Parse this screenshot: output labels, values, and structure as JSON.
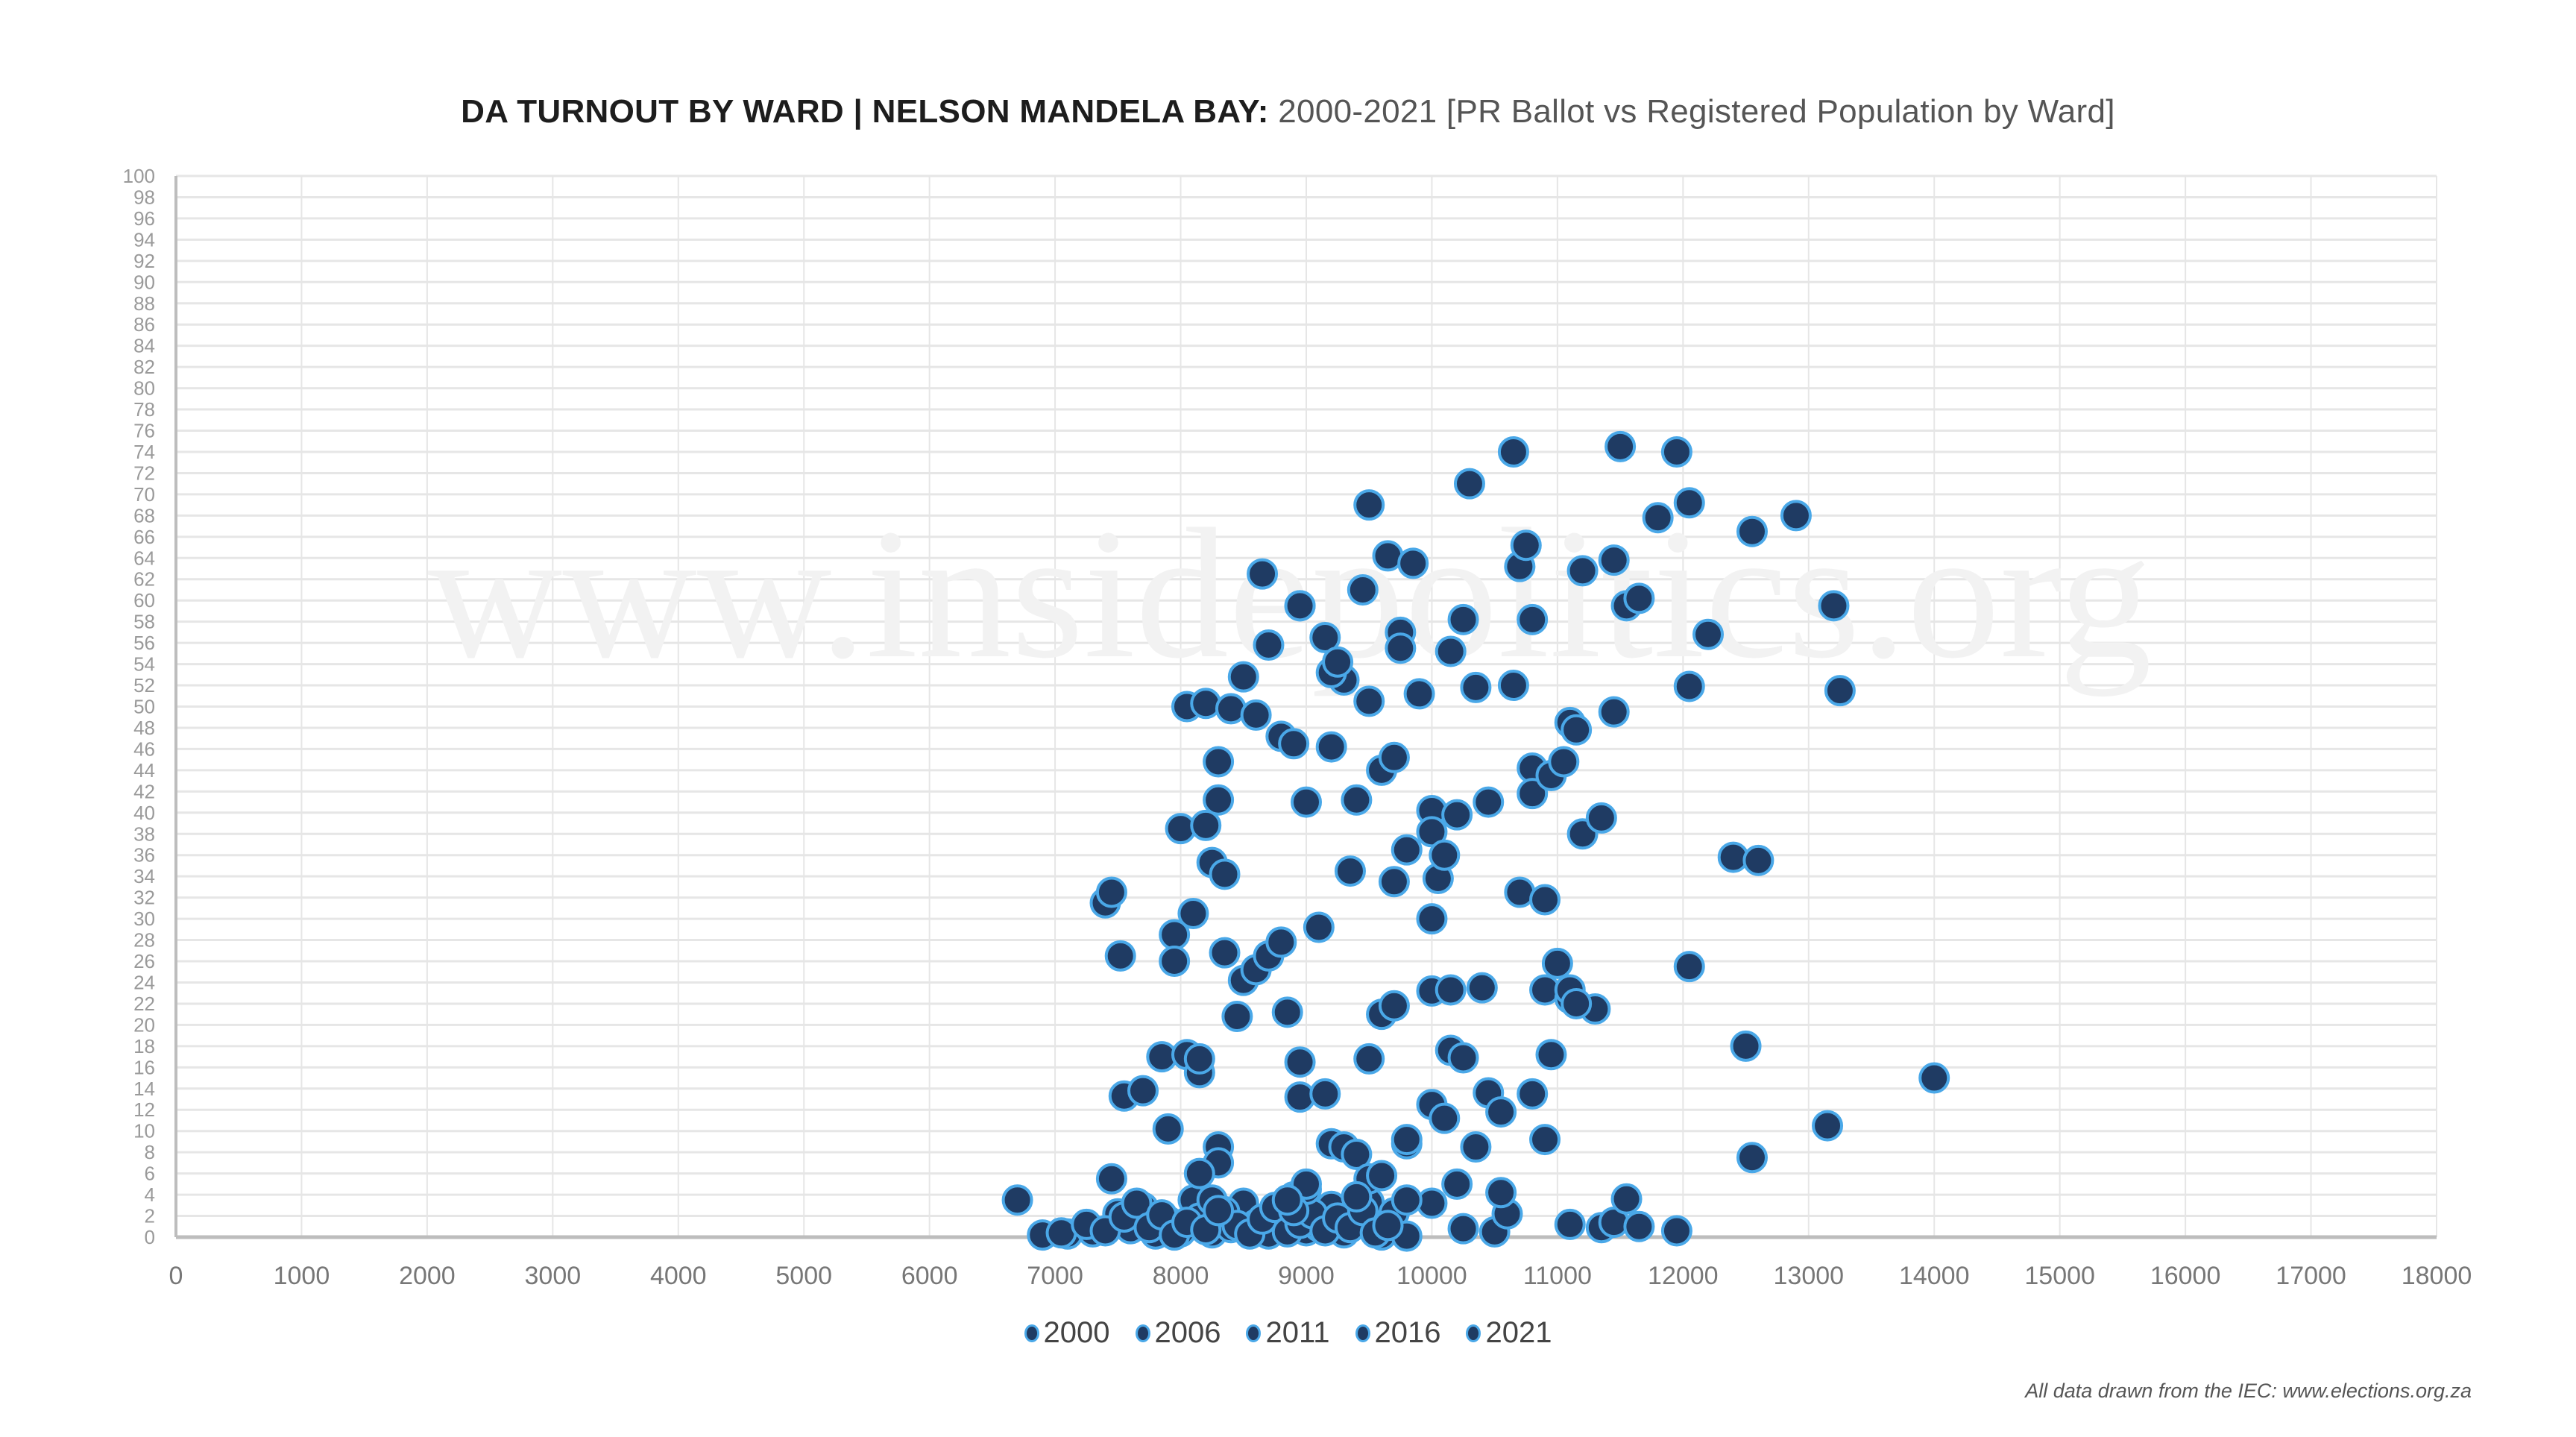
{
  "title": {
    "bold": "DA TURNOUT BY WARD | NELSON MANDELA BAY:",
    "light": "2000-2021 [PR Ballot vs Registered Population by Ward]"
  },
  "watermark": "www.insidepolitics.org",
  "footer": "All data drawn from the IEC: www.elections.org.za",
  "colors": {
    "marker_fill": "#1f3b63",
    "marker_stroke": "#4aa8e8",
    "grid": "#e6e6e6",
    "axis": "#bdbdbd",
    "tick_text": "#9a9a9a",
    "xtick_text": "#777777"
  },
  "chart_data": {
    "type": "scatter",
    "title": "DA TURNOUT BY WARD | NELSON MANDELA BAY: 2000-2021 [PR Ballot vs Registered Population by Ward]",
    "xlabel": "",
    "ylabel": "",
    "xlim": [
      0,
      18000
    ],
    "ylim": [
      0,
      100
    ],
    "xticks": [
      0,
      1000,
      2000,
      3000,
      4000,
      5000,
      6000,
      7000,
      8000,
      9000,
      10000,
      11000,
      12000,
      13000,
      14000,
      15000,
      16000,
      17000,
      18000
    ],
    "yticks": [
      0,
      2,
      4,
      6,
      8,
      10,
      12,
      14,
      16,
      18,
      20,
      22,
      24,
      26,
      28,
      30,
      32,
      34,
      36,
      38,
      40,
      42,
      44,
      46,
      48,
      50,
      52,
      54,
      56,
      58,
      60,
      62,
      64,
      66,
      68,
      70,
      72,
      74,
      76,
      78,
      80,
      82,
      84,
      86,
      88,
      90,
      92,
      94,
      96,
      98,
      100
    ],
    "grid": true,
    "legend_position": "bottom",
    "series": [
      {
        "name": "2000",
        "points": [
          [
            6700,
            3.5
          ],
          [
            6900,
            0.2
          ],
          [
            7100,
            0.3
          ],
          [
            7300,
            0.5
          ],
          [
            7450,
            5.5
          ],
          [
            7500,
            2.2
          ],
          [
            7600,
            0.8
          ],
          [
            7700,
            2.8
          ],
          [
            7800,
            0.3
          ],
          [
            7900,
            1.5
          ],
          [
            8000,
            0.5
          ],
          [
            8100,
            3.5
          ],
          [
            8150,
            1.8
          ],
          [
            8250,
            0.4
          ],
          [
            8300,
            2.6
          ],
          [
            8400,
            0.9
          ],
          [
            8500,
            3.2
          ],
          [
            8600,
            1.2
          ],
          [
            8700,
            0.3
          ],
          [
            8800,
            2.0
          ],
          [
            8900,
            3.8
          ],
          [
            9000,
            0.6
          ],
          [
            9100,
            1.0
          ],
          [
            9200,
            2.9
          ],
          [
            9300,
            0.4
          ],
          [
            9400,
            1.6
          ],
          [
            9500,
            3.3
          ],
          [
            9600,
            0.2
          ],
          [
            9700,
            2.3
          ],
          [
            9800,
            0.1
          ],
          [
            10000,
            3.2
          ],
          [
            10250,
            0.8
          ],
          [
            10500,
            0.5
          ],
          [
            10600,
            2.2
          ]
        ]
      },
      {
        "name": "2006",
        "points": [
          [
            7050,
            0.4
          ],
          [
            7250,
            1.2
          ],
          [
            7400,
            0.6
          ],
          [
            7550,
            1.9
          ],
          [
            7650,
            3.2
          ],
          [
            7750,
            0.9
          ],
          [
            7850,
            2.1
          ],
          [
            7950,
            0.2
          ],
          [
            8050,
            1.4
          ],
          [
            8200,
            0.7
          ],
          [
            8350,
            2.4
          ],
          [
            8450,
            1.1
          ],
          [
            8550,
            0.3
          ],
          [
            8650,
            1.7
          ],
          [
            8750,
            2.8
          ],
          [
            8850,
            0.5
          ],
          [
            8950,
            1.3
          ],
          [
            9050,
            2.2
          ],
          [
            9150,
            0.6
          ],
          [
            9250,
            1.8
          ],
          [
            9350,
            0.9
          ],
          [
            9450,
            2.5
          ],
          [
            9550,
            0.4
          ],
          [
            9650,
            1.1
          ],
          [
            10550,
            4.2
          ],
          [
            11100,
            1.2
          ],
          [
            11350,
            0.9
          ],
          [
            11450,
            1.4
          ],
          [
            11550,
            3.6
          ],
          [
            11650,
            1.0
          ],
          [
            11950,
            0.6
          ]
        ]
      },
      {
        "name": "2011",
        "points": [
          [
            7400,
            31.5
          ],
          [
            7450,
            32.5
          ],
          [
            7520,
            26.5
          ],
          [
            7550,
            13.3
          ],
          [
            7700,
            13.8
          ],
          [
            7850,
            17.0
          ],
          [
            7900,
            10.2
          ],
          [
            7950,
            28.5
          ],
          [
            7950,
            26.0
          ],
          [
            8000,
            38.5
          ],
          [
            8050,
            17.2
          ],
          [
            8100,
            30.5
          ],
          [
            8150,
            15.5
          ],
          [
            8150,
            16.8
          ],
          [
            8200,
            38.8
          ],
          [
            8250,
            35.3
          ],
          [
            8300,
            8.5
          ],
          [
            8300,
            7.0
          ],
          [
            8350,
            26.8
          ],
          [
            8450,
            20.8
          ],
          [
            8500,
            24.2
          ],
          [
            8600,
            25.2
          ],
          [
            8700,
            26.5
          ],
          [
            8800,
            27.8
          ],
          [
            8850,
            21.2
          ],
          [
            8950,
            16.5
          ],
          [
            8950,
            13.2
          ],
          [
            9100,
            29.2
          ],
          [
            9150,
            13.5
          ],
          [
            9200,
            8.8
          ],
          [
            9300,
            8.5
          ],
          [
            9400,
            7.8
          ],
          [
            9500,
            16.8
          ],
          [
            9600,
            21.0
          ],
          [
            9700,
            21.8
          ],
          [
            9800,
            8.8
          ],
          [
            9800,
            9.2
          ],
          [
            10000,
            12.5
          ],
          [
            10100,
            11.2
          ],
          [
            10150,
            17.6
          ],
          [
            10250,
            16.9
          ],
          [
            10350,
            8.5
          ],
          [
            10450,
            13.6
          ],
          [
            10550,
            11.8
          ],
          [
            10800,
            13.5
          ],
          [
            10900,
            9.2
          ],
          [
            10950,
            17.2
          ],
          [
            12500,
            18.0
          ],
          [
            12550,
            7.5
          ],
          [
            13150,
            10.5
          ],
          [
            14000,
            15.0
          ]
        ]
      },
      {
        "name": "2016",
        "points": [
          [
            8050,
            50.0
          ],
          [
            8200,
            50.3
          ],
          [
            8300,
            44.8
          ],
          [
            8300,
            41.2
          ],
          [
            8350,
            34.2
          ],
          [
            8400,
            49.8
          ],
          [
            8500,
            52.8
          ],
          [
            8600,
            49.2
          ],
          [
            8700,
            55.8
          ],
          [
            8800,
            47.2
          ],
          [
            8900,
            46.5
          ],
          [
            8950,
            59.5
          ],
          [
            9000,
            41.0
          ],
          [
            9150,
            56.5
          ],
          [
            9200,
            46.2
          ],
          [
            9300,
            52.5
          ],
          [
            9350,
            34.5
          ],
          [
            9400,
            41.2
          ],
          [
            9500,
            50.5
          ],
          [
            9600,
            44.0
          ],
          [
            9700,
            45.2
          ],
          [
            9700,
            33.5
          ],
          [
            9800,
            36.5
          ],
          [
            9900,
            51.2
          ],
          [
            10000,
            40.2
          ],
          [
            10000,
            38.2
          ],
          [
            10050,
            33.8
          ],
          [
            10100,
            36.0
          ],
          [
            10200,
            39.8
          ],
          [
            10350,
            51.8
          ],
          [
            10450,
            41.0
          ],
          [
            10650,
            52.0
          ],
          [
            10700,
            32.5
          ],
          [
            10800,
            44.2
          ],
          [
            10800,
            41.8
          ],
          [
            10900,
            31.8
          ],
          [
            10950,
            43.5
          ],
          [
            11000,
            25.8
          ],
          [
            11050,
            44.8
          ],
          [
            11100,
            48.5
          ],
          [
            11150,
            47.8
          ],
          [
            11200,
            38.0
          ],
          [
            11300,
            21.5
          ],
          [
            11350,
            39.5
          ],
          [
            11450,
            49.5
          ],
          [
            12050,
            51.9
          ],
          [
            12400,
            35.8
          ],
          [
            12600,
            35.5
          ],
          [
            12050,
            25.5
          ],
          [
            13250,
            51.5
          ]
        ]
      },
      {
        "name": "2021",
        "points": [
          [
            8650,
            62.5
          ],
          [
            8950,
            59.5
          ],
          [
            9200,
            53.2
          ],
          [
            9250,
            54.2
          ],
          [
            9450,
            61.0
          ],
          [
            9500,
            69.0
          ],
          [
            9650,
            64.2
          ],
          [
            9750,
            57.0
          ],
          [
            9750,
            55.5
          ],
          [
            9850,
            63.5
          ],
          [
            10150,
            55.2
          ],
          [
            10250,
            58.2
          ],
          [
            10300,
            71.0
          ],
          [
            10650,
            74.0
          ],
          [
            10700,
            63.2
          ],
          [
            10750,
            65.2
          ],
          [
            10800,
            58.2
          ],
          [
            11200,
            62.8
          ],
          [
            11450,
            63.8
          ],
          [
            11500,
            74.5
          ],
          [
            11550,
            59.5
          ],
          [
            11650,
            60.2
          ],
          [
            11800,
            67.8
          ],
          [
            11950,
            74.0
          ],
          [
            12050,
            69.2
          ],
          [
            12200,
            56.8
          ],
          [
            12550,
            66.5
          ],
          [
            12900,
            68.0
          ],
          [
            13200,
            59.5
          ],
          [
            10000,
            30.0
          ],
          [
            10000,
            23.2
          ],
          [
            10150,
            23.3
          ],
          [
            10400,
            23.5
          ],
          [
            10900,
            23.3
          ],
          [
            11100,
            22.5
          ],
          [
            11100,
            23.3
          ],
          [
            11150,
            22.0
          ],
          [
            10200,
            5.0
          ],
          [
            9500,
            5.5
          ],
          [
            9400,
            3.8
          ],
          [
            9600,
            5.8
          ],
          [
            9000,
            4.5
          ],
          [
            8250,
            3.5
          ],
          [
            8150,
            6.0
          ],
          [
            8300,
            2.5
          ],
          [
            8900,
            2.5
          ],
          [
            9000,
            5.0
          ],
          [
            8850,
            3.5
          ],
          [
            9800,
            3.5
          ]
        ]
      }
    ]
  }
}
